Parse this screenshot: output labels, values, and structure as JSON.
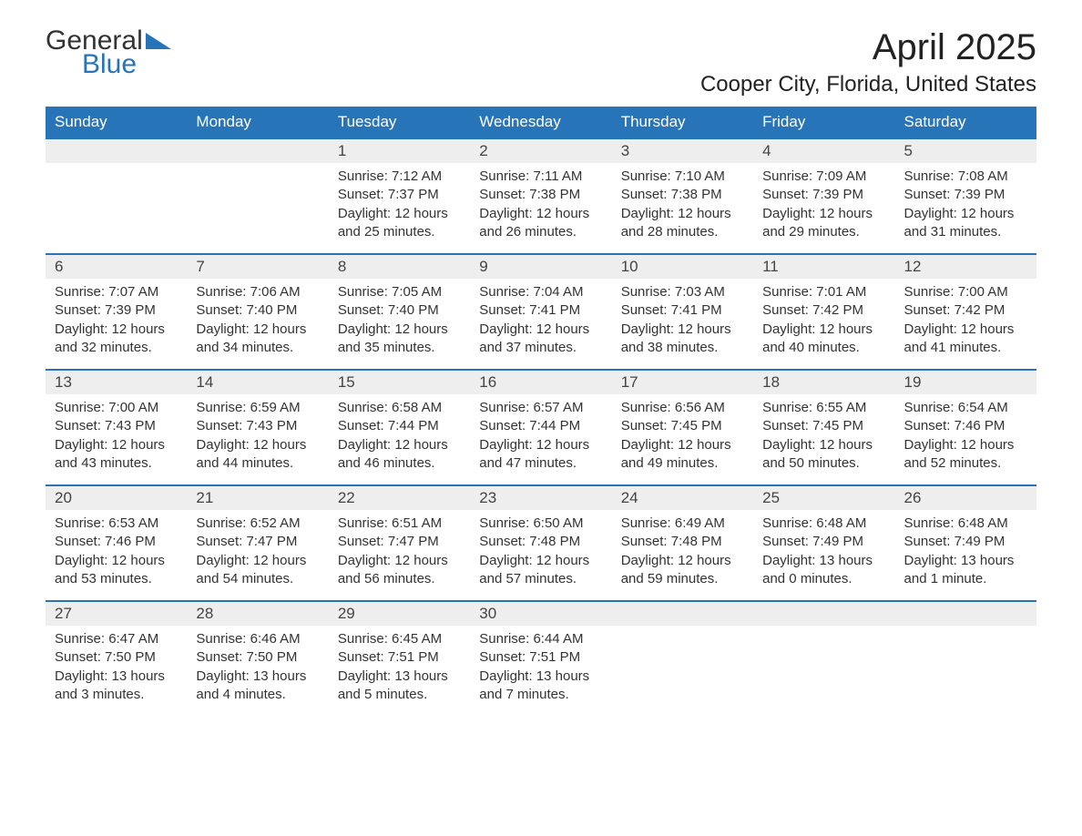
{
  "logo": {
    "line1": "General",
    "line2": "Blue",
    "icon_color": "#2874b8",
    "text_color": "#333333"
  },
  "title": "April 2025",
  "location": "Cooper City, Florida, United States",
  "colors": {
    "header_bg": "#2874b8",
    "header_text": "#ffffff",
    "daynum_bg": "#eeeeee",
    "row_border": "#2874b8",
    "body_text": "#333333",
    "background": "#ffffff"
  },
  "typography": {
    "title_fontsize": 40,
    "location_fontsize": 24,
    "header_fontsize": 17,
    "daynum_fontsize": 17,
    "cell_fontsize": 15
  },
  "day_headers": [
    "Sunday",
    "Monday",
    "Tuesday",
    "Wednesday",
    "Thursday",
    "Friday",
    "Saturday"
  ],
  "weeks": [
    {
      "nums": [
        "",
        "",
        "1",
        "2",
        "3",
        "4",
        "5"
      ],
      "cells": [
        null,
        null,
        {
          "sunrise": "Sunrise: 7:12 AM",
          "sunset": "Sunset: 7:37 PM",
          "daylight1": "Daylight: 12 hours",
          "daylight2": "and 25 minutes."
        },
        {
          "sunrise": "Sunrise: 7:11 AM",
          "sunset": "Sunset: 7:38 PM",
          "daylight1": "Daylight: 12 hours",
          "daylight2": "and 26 minutes."
        },
        {
          "sunrise": "Sunrise: 7:10 AM",
          "sunset": "Sunset: 7:38 PM",
          "daylight1": "Daylight: 12 hours",
          "daylight2": "and 28 minutes."
        },
        {
          "sunrise": "Sunrise: 7:09 AM",
          "sunset": "Sunset: 7:39 PM",
          "daylight1": "Daylight: 12 hours",
          "daylight2": "and 29 minutes."
        },
        {
          "sunrise": "Sunrise: 7:08 AM",
          "sunset": "Sunset: 7:39 PM",
          "daylight1": "Daylight: 12 hours",
          "daylight2": "and 31 minutes."
        }
      ]
    },
    {
      "nums": [
        "6",
        "7",
        "8",
        "9",
        "10",
        "11",
        "12"
      ],
      "cells": [
        {
          "sunrise": "Sunrise: 7:07 AM",
          "sunset": "Sunset: 7:39 PM",
          "daylight1": "Daylight: 12 hours",
          "daylight2": "and 32 minutes."
        },
        {
          "sunrise": "Sunrise: 7:06 AM",
          "sunset": "Sunset: 7:40 PM",
          "daylight1": "Daylight: 12 hours",
          "daylight2": "and 34 minutes."
        },
        {
          "sunrise": "Sunrise: 7:05 AM",
          "sunset": "Sunset: 7:40 PM",
          "daylight1": "Daylight: 12 hours",
          "daylight2": "and 35 minutes."
        },
        {
          "sunrise": "Sunrise: 7:04 AM",
          "sunset": "Sunset: 7:41 PM",
          "daylight1": "Daylight: 12 hours",
          "daylight2": "and 37 minutes."
        },
        {
          "sunrise": "Sunrise: 7:03 AM",
          "sunset": "Sunset: 7:41 PM",
          "daylight1": "Daylight: 12 hours",
          "daylight2": "and 38 minutes."
        },
        {
          "sunrise": "Sunrise: 7:01 AM",
          "sunset": "Sunset: 7:42 PM",
          "daylight1": "Daylight: 12 hours",
          "daylight2": "and 40 minutes."
        },
        {
          "sunrise": "Sunrise: 7:00 AM",
          "sunset": "Sunset: 7:42 PM",
          "daylight1": "Daylight: 12 hours",
          "daylight2": "and 41 minutes."
        }
      ]
    },
    {
      "nums": [
        "13",
        "14",
        "15",
        "16",
        "17",
        "18",
        "19"
      ],
      "cells": [
        {
          "sunrise": "Sunrise: 7:00 AM",
          "sunset": "Sunset: 7:43 PM",
          "daylight1": "Daylight: 12 hours",
          "daylight2": "and 43 minutes."
        },
        {
          "sunrise": "Sunrise: 6:59 AM",
          "sunset": "Sunset: 7:43 PM",
          "daylight1": "Daylight: 12 hours",
          "daylight2": "and 44 minutes."
        },
        {
          "sunrise": "Sunrise: 6:58 AM",
          "sunset": "Sunset: 7:44 PM",
          "daylight1": "Daylight: 12 hours",
          "daylight2": "and 46 minutes."
        },
        {
          "sunrise": "Sunrise: 6:57 AM",
          "sunset": "Sunset: 7:44 PM",
          "daylight1": "Daylight: 12 hours",
          "daylight2": "and 47 minutes."
        },
        {
          "sunrise": "Sunrise: 6:56 AM",
          "sunset": "Sunset: 7:45 PM",
          "daylight1": "Daylight: 12 hours",
          "daylight2": "and 49 minutes."
        },
        {
          "sunrise": "Sunrise: 6:55 AM",
          "sunset": "Sunset: 7:45 PM",
          "daylight1": "Daylight: 12 hours",
          "daylight2": "and 50 minutes."
        },
        {
          "sunrise": "Sunrise: 6:54 AM",
          "sunset": "Sunset: 7:46 PM",
          "daylight1": "Daylight: 12 hours",
          "daylight2": "and 52 minutes."
        }
      ]
    },
    {
      "nums": [
        "20",
        "21",
        "22",
        "23",
        "24",
        "25",
        "26"
      ],
      "cells": [
        {
          "sunrise": "Sunrise: 6:53 AM",
          "sunset": "Sunset: 7:46 PM",
          "daylight1": "Daylight: 12 hours",
          "daylight2": "and 53 minutes."
        },
        {
          "sunrise": "Sunrise: 6:52 AM",
          "sunset": "Sunset: 7:47 PM",
          "daylight1": "Daylight: 12 hours",
          "daylight2": "and 54 minutes."
        },
        {
          "sunrise": "Sunrise: 6:51 AM",
          "sunset": "Sunset: 7:47 PM",
          "daylight1": "Daylight: 12 hours",
          "daylight2": "and 56 minutes."
        },
        {
          "sunrise": "Sunrise: 6:50 AM",
          "sunset": "Sunset: 7:48 PM",
          "daylight1": "Daylight: 12 hours",
          "daylight2": "and 57 minutes."
        },
        {
          "sunrise": "Sunrise: 6:49 AM",
          "sunset": "Sunset: 7:48 PM",
          "daylight1": "Daylight: 12 hours",
          "daylight2": "and 59 minutes."
        },
        {
          "sunrise": "Sunrise: 6:48 AM",
          "sunset": "Sunset: 7:49 PM",
          "daylight1": "Daylight: 13 hours",
          "daylight2": "and 0 minutes."
        },
        {
          "sunrise": "Sunrise: 6:48 AM",
          "sunset": "Sunset: 7:49 PM",
          "daylight1": "Daylight: 13 hours",
          "daylight2": "and 1 minute."
        }
      ]
    },
    {
      "nums": [
        "27",
        "28",
        "29",
        "30",
        "",
        "",
        ""
      ],
      "cells": [
        {
          "sunrise": "Sunrise: 6:47 AM",
          "sunset": "Sunset: 7:50 PM",
          "daylight1": "Daylight: 13 hours",
          "daylight2": "and 3 minutes."
        },
        {
          "sunrise": "Sunrise: 6:46 AM",
          "sunset": "Sunset: 7:50 PM",
          "daylight1": "Daylight: 13 hours",
          "daylight2": "and 4 minutes."
        },
        {
          "sunrise": "Sunrise: 6:45 AM",
          "sunset": "Sunset: 7:51 PM",
          "daylight1": "Daylight: 13 hours",
          "daylight2": "and 5 minutes."
        },
        {
          "sunrise": "Sunrise: 6:44 AM",
          "sunset": "Sunset: 7:51 PM",
          "daylight1": "Daylight: 13 hours",
          "daylight2": "and 7 minutes."
        },
        null,
        null,
        null
      ]
    }
  ]
}
